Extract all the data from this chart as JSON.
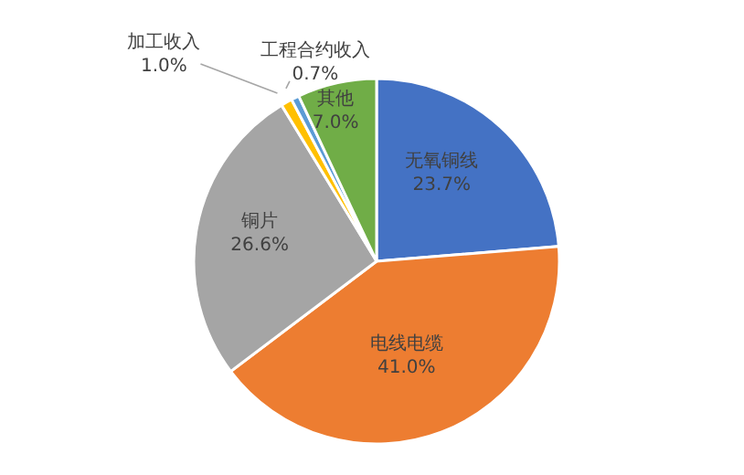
{
  "chart_data": {
    "type": "pie",
    "categories": [
      "无氧铜线",
      "电线电缆",
      "铜片",
      "加工收入",
      "工程合约收入",
      "其他"
    ],
    "values": [
      23.7,
      41.0,
      26.6,
      1.0,
      0.7,
      7.0
    ],
    "value_labels": [
      "23.7%",
      "41.0%",
      "26.6%",
      "1.0%",
      "0.7%",
      "7.0%"
    ],
    "colors": [
      "#4472c4",
      "#ed7d31",
      "#a5a5a5",
      "#ffc000",
      "#5b9bd5",
      "#70ad47"
    ],
    "legend": false
  }
}
